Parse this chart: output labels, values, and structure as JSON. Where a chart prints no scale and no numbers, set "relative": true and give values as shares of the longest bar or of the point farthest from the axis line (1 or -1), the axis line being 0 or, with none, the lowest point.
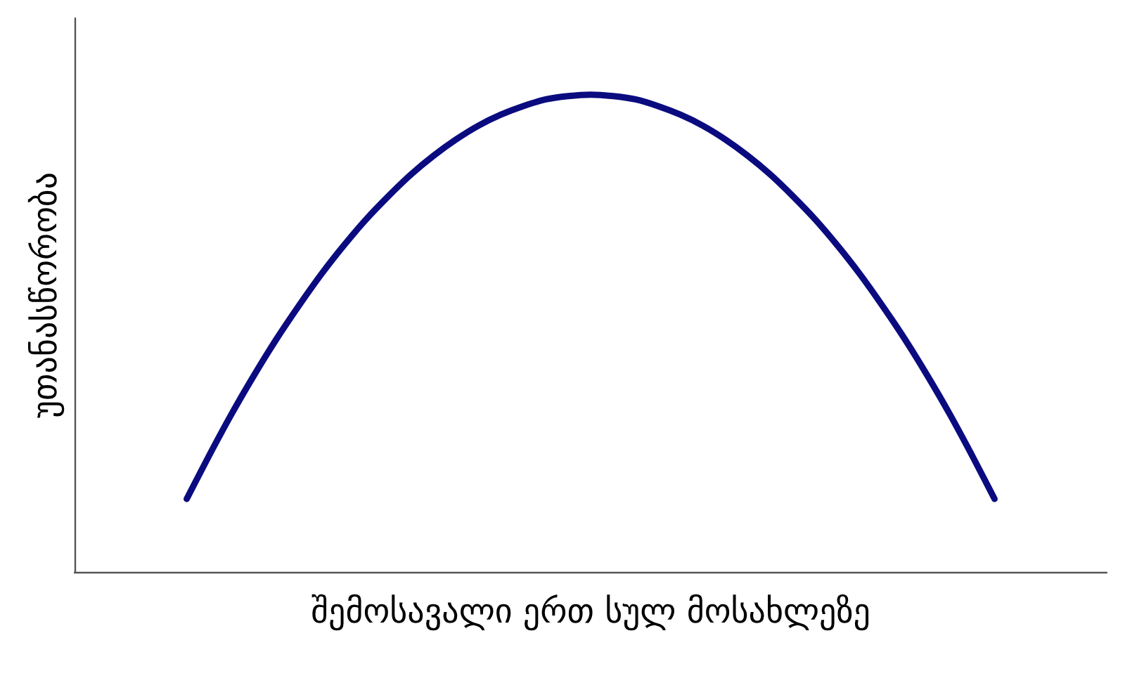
{
  "chart_data": {
    "type": "line",
    "relative": true,
    "xlabel": "შემოსავალი ერთ სულ მოსახლეზე",
    "ylabel": "უთანასწორობა",
    "categories": [
      null,
      null,
      null,
      null,
      null,
      null,
      null,
      null,
      null,
      null,
      null,
      null,
      null,
      null,
      null,
      null,
      null,
      null,
      null,
      null,
      null,
      null,
      null,
      null,
      null,
      null,
      null,
      null,
      null,
      null,
      null,
      null,
      null,
      null,
      null,
      null,
      null,
      null,
      null,
      null,
      null,
      null,
      null,
      null,
      null,
      null,
      null
    ],
    "series": [
      {
        "color": "#0b0b80",
        "values": [
          null,
          null,
          null,
          null,
          null,
          0.153,
          0.244,
          0.331,
          0.412,
          0.488,
          0.558,
          0.624,
          0.684,
          0.739,
          0.788,
          0.833,
          0.872,
          0.906,
          0.935,
          0.958,
          0.976,
          0.99,
          0.997,
          1.0,
          0.997,
          0.99,
          0.976,
          0.958,
          0.935,
          0.906,
          0.872,
          0.833,
          0.788,
          0.739,
          0.684,
          0.624,
          0.558,
          0.488,
          0.412,
          0.331,
          0.244,
          0.153,
          null,
          null,
          null,
          null,
          null
        ]
      }
    ],
    "marker": "none",
    "line_style": "solid"
  }
}
